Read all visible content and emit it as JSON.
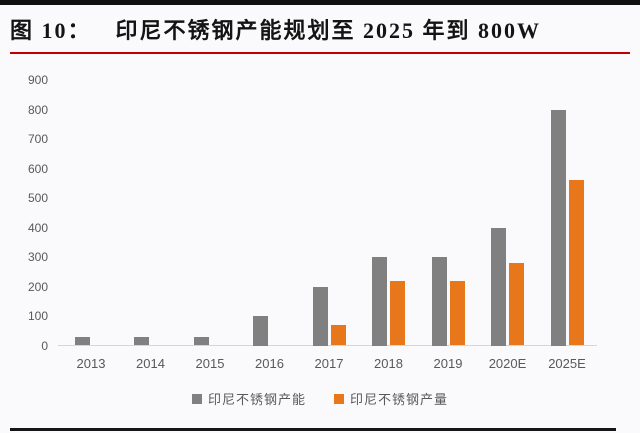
{
  "header": {
    "figure_label": "图 10：",
    "title": "印尼不锈钢产能规划至 2025 年到 800W"
  },
  "colors": {
    "capacity_gray": "#808080",
    "production_orange": "#e8761a",
    "title_underline_red": "#c00000",
    "axis_text": "#595959",
    "axis_line": "#d6d6d6",
    "divider_black": "#101010",
    "background": "#faf9fb"
  },
  "chart_data": {
    "type": "bar",
    "categories": [
      "2013",
      "2014",
      "2015",
      "2016",
      "2017",
      "2018",
      "2019",
      "2020E",
      "2025E"
    ],
    "series": [
      {
        "name": "印尼不锈钢产能",
        "color": "#808080",
        "values": [
          30,
          30,
          30,
          100,
          200,
          300,
          300,
          400,
          800
        ]
      },
      {
        "name": "印尼不锈钢产量",
        "color": "#e8761a",
        "values": [
          0,
          0,
          0,
          0,
          70,
          220,
          220,
          280,
          560
        ]
      }
    ],
    "title": "印尼不锈钢产能规划至 2025 年到 800W",
    "xlabel": "",
    "ylabel": "",
    "ylim": [
      0,
      900
    ],
    "yticks": [
      0,
      100,
      200,
      300,
      400,
      500,
      600,
      700,
      800,
      900
    ],
    "grid": false,
    "legend_position": "bottom-center"
  }
}
